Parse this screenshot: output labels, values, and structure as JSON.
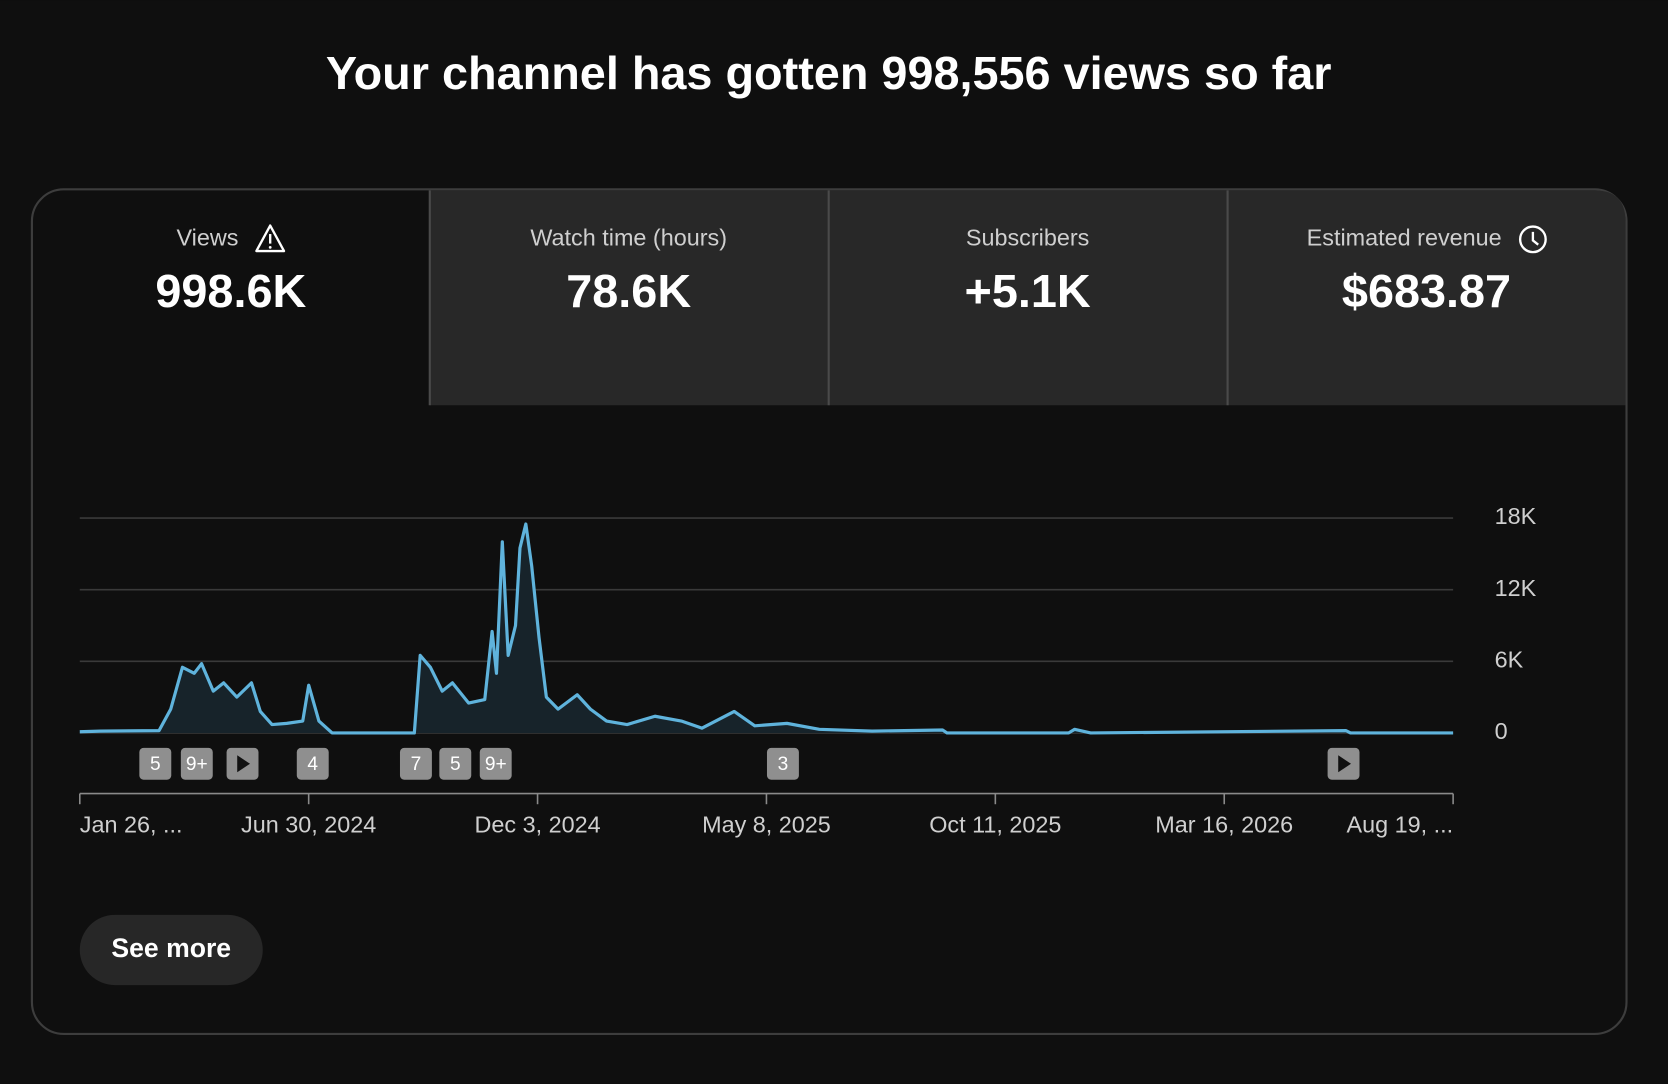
{
  "header": {
    "title": "Your channel has gotten 998,556 views so far"
  },
  "metrics": [
    {
      "label": "Views",
      "value": "998.6K"
    },
    {
      "label": "Watch time (hours)",
      "value": "78.6K"
    },
    {
      "label": "Subscribers",
      "value": "+5.1K"
    },
    {
      "label": "Estimated revenue",
      "value": "$683.87"
    }
  ],
  "chart_data": {
    "type": "line",
    "x": [
      "2024-01-26",
      "2024-02-09",
      "2024-03-20",
      "2024-03-28",
      "2024-04-05",
      "2024-04-13",
      "2024-04-18",
      "2024-04-26",
      "2024-05-03",
      "2024-05-12",
      "2024-05-22",
      "2024-05-28",
      "2024-06-05",
      "2024-06-15",
      "2024-06-26",
      "2024-06-30",
      "2024-07-07",
      "2024-07-16",
      "2024-09-10",
      "2024-09-14",
      "2024-09-21",
      "2024-09-29",
      "2024-10-06",
      "2024-10-17",
      "2024-10-28",
      "2024-11-02",
      "2024-11-05",
      "2024-11-09",
      "2024-11-13",
      "2024-11-18",
      "2024-11-21",
      "2024-11-25",
      "2024-11-29",
      "2024-12-04",
      "2024-12-09",
      "2024-12-17",
      "2024-12-30",
      "2025-01-08",
      "2025-01-19",
      "2025-02-02",
      "2025-02-21",
      "2025-03-11",
      "2025-03-25",
      "2025-04-16",
      "2025-04-30",
      "2025-05-22",
      "2025-06-13",
      "2025-07-19",
      "2025-09-05",
      "2025-09-08",
      "2025-11-30",
      "2025-12-04",
      "2025-12-15",
      "2026-06-07",
      "2026-06-10",
      "2026-08-19"
    ],
    "series": [
      {
        "name": "Views",
        "color": "#5fb3dc",
        "values": [
          100,
          150,
          200,
          2000,
          5500,
          5000,
          5800,
          3500,
          4200,
          3000,
          4200,
          1800,
          700,
          800,
          1000,
          4000,
          1000,
          0,
          0,
          6500,
          5500,
          3500,
          4200,
          2500,
          2800,
          8500,
          5000,
          16000,
          6500,
          9000,
          15500,
          17500,
          14000,
          8000,
          3000,
          2000,
          3200,
          2000,
          1000,
          700,
          1400,
          1000,
          400,
          1800,
          600,
          800,
          300,
          150,
          250,
          0,
          0,
          300,
          0,
          200,
          0,
          0
        ]
      }
    ],
    "xlim": [
      "2024-01-26",
      "2026-08-19"
    ],
    "xticks": [
      {
        "value": "2024-01-26",
        "label": "Jan 26, ..."
      },
      {
        "value": "2024-06-30",
        "label": "Jun 30, 2024"
      },
      {
        "value": "2024-12-03",
        "label": "Dec 3, 2024"
      },
      {
        "value": "2025-05-08",
        "label": "May 8, 2025"
      },
      {
        "value": "2025-10-11",
        "label": "Oct 11, 2025"
      },
      {
        "value": "2026-03-16",
        "label": "Mar 16, 2026"
      },
      {
        "value": "2026-08-19",
        "label": "Aug 19, ..."
      }
    ],
    "ylim": [
      0,
      18000
    ],
    "yticks": [
      0,
      {
        "value": 6000,
        "label": "6K"
      },
      {
        "value": 12000,
        "label": "12K"
      },
      {
        "value": 18000,
        "label": "18K"
      }
    ],
    "grid": true,
    "markers": [
      "5",
      "9+",
      "4",
      "7",
      "5",
      "9+",
      "3"
    ]
  },
  "button": {
    "label": "See more"
  }
}
